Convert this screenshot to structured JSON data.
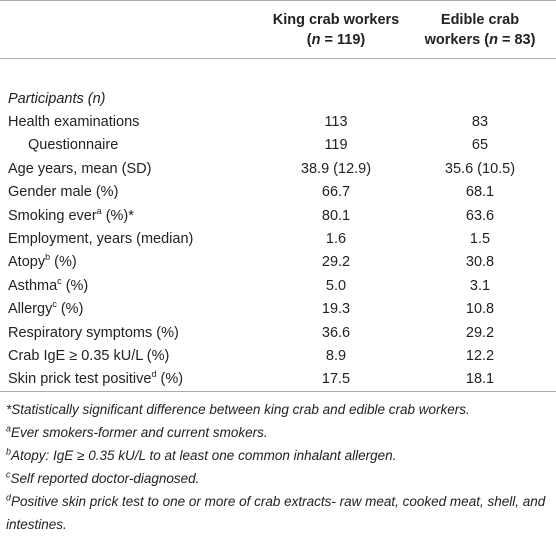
{
  "header": {
    "columns": [
      {
        "line1": "King crab workers",
        "line2_pre": "(",
        "n": "n",
        "line2_post": " = 119)"
      },
      {
        "line1": "Edible crab",
        "line2_pre": "workers (",
        "n": "n",
        "line2_post": " = 83)"
      }
    ]
  },
  "table": {
    "section": "Participants (n)",
    "rows": [
      {
        "label": "Health examinations",
        "values": [
          "113",
          "83"
        ]
      },
      {
        "label": "Questionnaire",
        "indent": true,
        "values": [
          "119",
          "65"
        ]
      },
      {
        "label": "Age years, mean (SD)",
        "values": [
          "38.9 (12.9)",
          "35.6 (10.5)"
        ]
      },
      {
        "label": "Gender male (%)",
        "values": [
          "66.7",
          "68.1"
        ]
      },
      {
        "label": "Smoking ever",
        "sup": "a",
        "suffix": " (%)*",
        "values": [
          "80.1",
          "63.6"
        ]
      },
      {
        "label": "Employment, years (median)",
        "values": [
          "1.6",
          "1.5"
        ]
      },
      {
        "label": "Atopy",
        "sup": "b",
        "suffix": " (%)",
        "values": [
          "29.2",
          "30.8"
        ]
      },
      {
        "label": "Asthma",
        "sup": "c",
        "suffix": " (%)",
        "values": [
          "5.0",
          "3.1"
        ]
      },
      {
        "label": "Allergy",
        "sup": "c",
        "suffix": " (%)",
        "values": [
          "19.3",
          "10.8"
        ]
      },
      {
        "label": "Respiratory symptoms (%)",
        "values": [
          "36.6",
          "29.2"
        ]
      },
      {
        "label": "Crab IgE ≥ 0.35 kU/L (%)",
        "values": [
          "8.9",
          "12.2"
        ]
      },
      {
        "label": "Skin prick test positive",
        "sup": "d",
        "suffix": " (%)",
        "values": [
          "17.5",
          "18.1"
        ]
      }
    ]
  },
  "footnotes": [
    {
      "mark": "*",
      "text": "Statistically significant difference between king crab and edible crab workers."
    },
    {
      "sup": "a",
      "text": "Ever smokers-former and current smokers."
    },
    {
      "sup": "b",
      "text": "Atopy: IgE ≥ 0.35 kU/L to at least one common inhalant allergen."
    },
    {
      "sup": "c",
      "text": "Self reported doctor-diagnosed."
    },
    {
      "sup": "d",
      "text": "Positive skin prick test to one or more of crab extracts- raw meat, cooked meat, shell, and intestines."
    }
  ]
}
